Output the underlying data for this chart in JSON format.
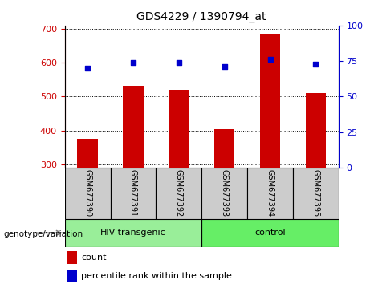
{
  "title": "GDS4229 / 1390794_at",
  "samples": [
    "GSM677390",
    "GSM677391",
    "GSM677392",
    "GSM677393",
    "GSM677394",
    "GSM677395"
  ],
  "count_values": [
    375,
    532,
    520,
    403,
    685,
    510
  ],
  "percentile_values": [
    70,
    74,
    74,
    71,
    76,
    73
  ],
  "ylim_left": [
    290,
    710
  ],
  "ylim_right": [
    0,
    100
  ],
  "yticks_left": [
    300,
    400,
    500,
    600,
    700
  ],
  "yticks_right": [
    0,
    25,
    50,
    75,
    100
  ],
  "bar_color": "#cc0000",
  "dot_color": "#0000cc",
  "groups": [
    {
      "label": "HIV-transgenic",
      "indices": [
        0,
        1,
        2
      ],
      "color": "#99ee99"
    },
    {
      "label": "control",
      "indices": [
        3,
        4,
        5
      ],
      "color": "#66ee66"
    }
  ],
  "group_label": "genotype/variation",
  "legend_count_label": "count",
  "legend_percentile_label": "percentile rank within the sample",
  "sample_box_color": "#cccccc",
  "fig_bg": "white"
}
